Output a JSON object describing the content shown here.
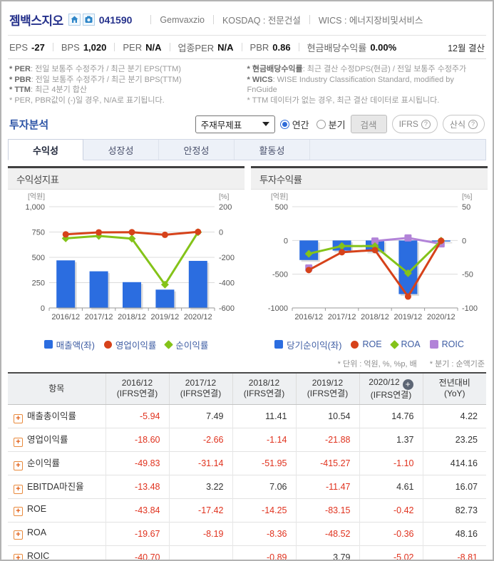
{
  "header": {
    "company_name": "젬백스지오",
    "ticker": "041590",
    "company_name_en": "Gemvaxzio",
    "market": "KOSDAQ : 전문건설",
    "wics": "WICS : 에너지장비및서비스"
  },
  "stats": {
    "items": [
      {
        "key": "eps",
        "label": "EPS",
        "value": "-27"
      },
      {
        "key": "bps",
        "label": "BPS",
        "value": "1,020"
      },
      {
        "key": "per",
        "label": "PER",
        "value": "N/A"
      },
      {
        "key": "sector-per",
        "label": "업종PER",
        "value": "N/A"
      },
      {
        "key": "pbr",
        "label": "PBR",
        "value": "0.86"
      },
      {
        "key": "dividend-yield",
        "label": "현금배당수익률",
        "value": "0.00%"
      }
    ],
    "settlement": "12월 결산"
  },
  "notes": {
    "left": [
      {
        "bold": "* PER",
        "rest": ": 전일 보통주 수정주가 / 최근 분기 EPS(TTM)"
      },
      {
        "bold": "* PBR",
        "rest": ": 전일 보통주 수정주가 / 최근 분기 BPS(TTM)"
      },
      {
        "bold": "* TTM",
        "rest": ": 최근 4분기 합산"
      },
      {
        "bold": "",
        "rest": "* PER, PBR값이 (-)일 경우, N/A로 표기됩니다."
      }
    ],
    "right": [
      {
        "bold": "* 현금배당수익률",
        "rest": ": 최근 결산 수정DPS(현금) / 전일 보통주 수정주가"
      },
      {
        "bold": "* WICS",
        "rest": ": WISE Industry Classification Standard, modified by FnGuide"
      },
      {
        "bold": "",
        "rest": "* TTM 데이터가 없는 경우, 최근 결산 데이터로 표시됩니다."
      }
    ]
  },
  "toolbar": {
    "section_title": "투자분석",
    "select_value": "주재무제표",
    "radio_annual": "연간",
    "radio_quarter": "분기",
    "search_label": "검색",
    "ifrs_label": "IFRS",
    "formula_label": "산식"
  },
  "tabs": [
    {
      "id": "profitability",
      "label": "수익성",
      "active": true
    },
    {
      "id": "growth",
      "label": "성장성",
      "active": false
    },
    {
      "id": "stability",
      "label": "안정성",
      "active": false
    },
    {
      "id": "activity",
      "label": "활동성",
      "active": false
    }
  ],
  "chart_data": [
    {
      "id": "profitability-indicator-chart",
      "type": "bar+line",
      "title": "수익성지표",
      "categories": [
        "2016/12",
        "2017/12",
        "2018/12",
        "2019/12",
        "2020/12"
      ],
      "left_axis": {
        "unit": "[억원]",
        "min": 0,
        "max": 1000,
        "ticks": [
          [
            0,
            "0"
          ],
          [
            250,
            "250"
          ],
          [
            500,
            "500"
          ],
          [
            750,
            "750"
          ],
          [
            1000,
            "1,000"
          ]
        ]
      },
      "right_axis": {
        "unit": "[%]",
        "min": -600,
        "max": 200,
        "ticks": [
          [
            -600,
            "-600"
          ],
          [
            -400,
            "-400"
          ],
          [
            -200,
            "-200"
          ],
          [
            0,
            "0"
          ],
          [
            200,
            "200"
          ]
        ]
      },
      "series": [
        {
          "name": "매출액(좌)",
          "type": "bar",
          "axis": "left",
          "color": "#2b6de0",
          "values": [
            470,
            362,
            255,
            181,
            465
          ]
        },
        {
          "name": "영업이익률",
          "type": "line",
          "axis": "right",
          "color": "#d6421a",
          "marker": "circle",
          "values": [
            -18.6,
            -2.66,
            -1.14,
            -21.88,
            1.37
          ]
        },
        {
          "name": "순이익률",
          "type": "line",
          "axis": "right",
          "color": "#84c319",
          "marker": "diamond",
          "values": [
            -49.83,
            -31.14,
            -51.95,
            -415.27,
            -1.1
          ]
        }
      ],
      "legend_position": "bottom",
      "grid": true
    },
    {
      "id": "investment-return-chart",
      "type": "bar+line",
      "title": "투자수익률",
      "categories": [
        "2016/12",
        "2017/12",
        "2018/12",
        "2019/12",
        "2020/12"
      ],
      "left_axis": {
        "unit": "[억원]",
        "min": -1000,
        "max": 500,
        "ticks": [
          [
            -1000,
            "-1000"
          ],
          [
            -500,
            "-500"
          ],
          [
            0,
            "0"
          ],
          [
            500,
            "500"
          ]
        ]
      },
      "right_axis": {
        "unit": "[%]",
        "min": -100,
        "max": 50,
        "ticks": [
          [
            -100,
            "-100"
          ],
          [
            -50,
            "-50"
          ],
          [
            0,
            "0"
          ],
          [
            50,
            "50"
          ]
        ]
      },
      "series": [
        {
          "name": "당기순이익(좌)",
          "type": "bar",
          "axis": "left",
          "color": "#2b6de0",
          "values": [
            -290,
            -150,
            -165,
            -795,
            -15
          ]
        },
        {
          "name": "ROE",
          "type": "line",
          "axis": "right",
          "color": "#d6421a",
          "marker": "circle",
          "values": [
            -43.84,
            -17.42,
            -14.25,
            -83.15,
            -0.42
          ]
        },
        {
          "name": "ROA",
          "type": "line",
          "axis": "right",
          "color": "#84c319",
          "marker": "diamond",
          "values": [
            -19.67,
            -8.19,
            -8.36,
            -48.52,
            -0.36
          ]
        },
        {
          "name": "ROIC",
          "type": "line",
          "axis": "right",
          "color": "#b283d8",
          "marker": "square",
          "values": [
            -40.7,
            null,
            -0.89,
            3.79,
            -5.02
          ]
        }
      ],
      "legend_position": "bottom",
      "grid": true
    }
  ],
  "table": {
    "unit_note": "* 단위 : 억원, %, %p, 배",
    "quarter_note": "* 분기 : 순액기준",
    "item_header": "항목",
    "year_headers": [
      {
        "year": "2016/12",
        "sub": "(IFRS연결)",
        "expand": false
      },
      {
        "year": "2017/12",
        "sub": "(IFRS연결)",
        "expand": false
      },
      {
        "year": "2018/12",
        "sub": "(IFRS연결)",
        "expand": false
      },
      {
        "year": "2019/12",
        "sub": "(IFRS연결)",
        "expand": false
      },
      {
        "year": "2020/12",
        "sub": "(IFRS연결)",
        "expand": true
      },
      {
        "year": "전년대비",
        "sub": "(YoY)",
        "expand": false
      }
    ],
    "rows": [
      {
        "key": "gross-margin",
        "label": "매출총이익률",
        "values": [
          "-5.94",
          "7.49",
          "11.41",
          "10.54",
          "14.76",
          "4.22"
        ]
      },
      {
        "key": "operating-margin",
        "label": "영업이익률",
        "values": [
          "-18.60",
          "-2.66",
          "-1.14",
          "-21.88",
          "1.37",
          "23.25"
        ]
      },
      {
        "key": "net-margin",
        "label": "순이익률",
        "values": [
          "-49.83",
          "-31.14",
          "-51.95",
          "-415.27",
          "-1.10",
          "414.16"
        ]
      },
      {
        "key": "ebitda-margin",
        "label": "EBITDA마진율",
        "values": [
          "-13.48",
          "3.22",
          "7.06",
          "-11.47",
          "4.61",
          "16.07"
        ]
      },
      {
        "key": "roe",
        "label": "ROE",
        "values": [
          "-43.84",
          "-17.42",
          "-14.25",
          "-83.15",
          "-0.42",
          "82.73"
        ]
      },
      {
        "key": "roa",
        "label": "ROA",
        "values": [
          "-19.67",
          "-8.19",
          "-8.36",
          "-48.52",
          "-0.36",
          "48.16"
        ]
      },
      {
        "key": "roic",
        "label": "ROIC",
        "values": [
          "-40.70",
          "",
          "-0.89",
          "3.79",
          "-5.02",
          "-8.81"
        ]
      }
    ]
  },
  "colors": {
    "bar_blue": "#2b6de0",
    "line_red": "#d6421a",
    "line_green": "#84c319",
    "line_purple": "#b283d8",
    "negative_red": "#e0321e",
    "accent_navy": "#26328c"
  }
}
